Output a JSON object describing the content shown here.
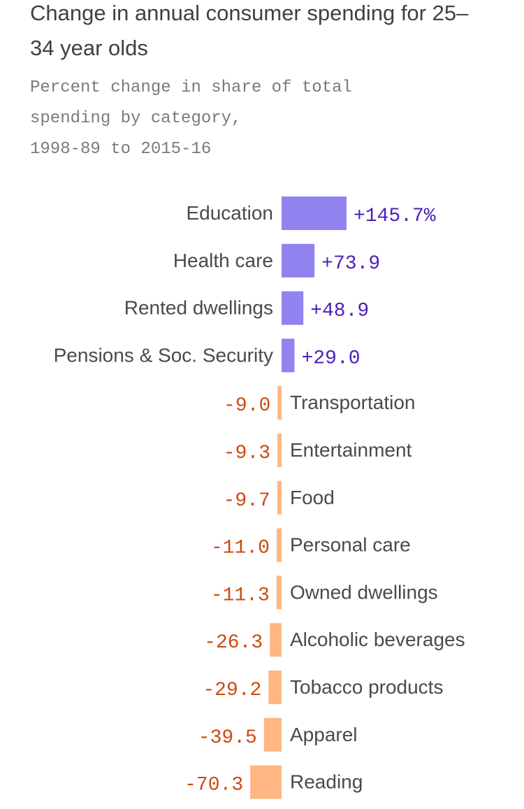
{
  "chart_data": {
    "type": "bar",
    "orientation": "horizontal",
    "title": "Change in annual consumer spending for 25–34 year olds",
    "subtitle": "Percent change in share of total\nspending by category,\n1998-89 to 2015-16",
    "xlabel": "",
    "ylabel": "",
    "grid": false,
    "legend": "none",
    "categories": [
      "Education",
      "Health care",
      "Rented dwellings",
      "Pensions & Soc. Security",
      "Transportation",
      "Entertainment",
      "Food",
      "Personal care",
      "Owned dwellings",
      "Alcoholic beverages",
      "Tobacco products",
      "Apparel",
      "Reading"
    ],
    "values": [
      145.7,
      73.9,
      48.9,
      29.0,
      -9.0,
      -9.3,
      -9.7,
      -11.0,
      -11.3,
      -26.3,
      -29.2,
      -39.5,
      -70.3
    ],
    "value_labels": [
      "+145.7%",
      "+73.9",
      "+48.9",
      "+29.0",
      "-9.0",
      "-9.3",
      "-9.7",
      "-11.0",
      "-11.3",
      "-26.3",
      "-29.2",
      "-39.5",
      "-70.3"
    ],
    "colors": {
      "positive_bar": "#9083f0",
      "positive_text": "#4d20b8",
      "negative_bar": "#ffb682",
      "negative_text": "#cc4a0e"
    }
  }
}
